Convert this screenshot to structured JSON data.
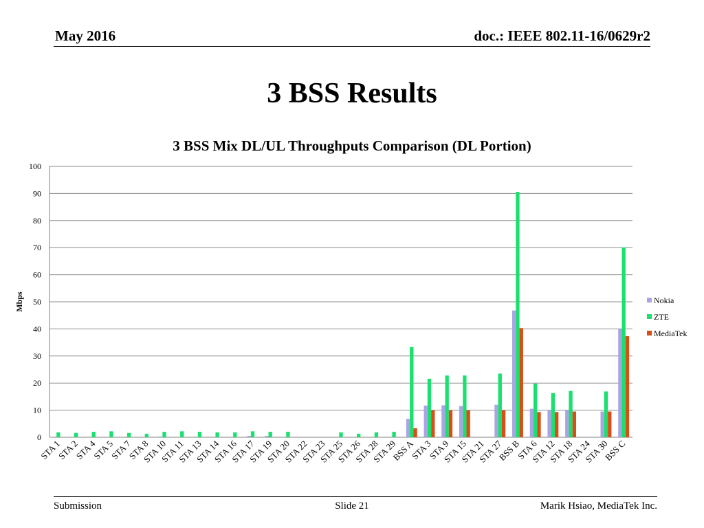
{
  "header": {
    "date": "May 2016",
    "doc": "doc.: IEEE 802.11-16/0629r2"
  },
  "slide": {
    "title": "3 BSS Results"
  },
  "footer": {
    "left": "Submission",
    "center": "Slide 21",
    "right": "Marik Hsiao, MediaTek Inc."
  },
  "chart_data": {
    "type": "bar",
    "title": "3 BSS Mix DL/UL Throughputs Comparison (DL Portion)",
    "xlabel": "",
    "ylabel": "Mbps",
    "ylim": [
      0,
      100
    ],
    "yticks": [
      0,
      10,
      20,
      30,
      40,
      50,
      60,
      70,
      80,
      90,
      100
    ],
    "grid": true,
    "legend_position": "right",
    "categories": [
      "STA 1",
      "STA 2",
      "STA 4",
      "STA 5",
      "STA 7",
      "STA 8",
      "STA 10",
      "STA 11",
      "STA 13",
      "STA 14",
      "STA 16",
      "STA 17",
      "STA 19",
      "STA 20",
      "STA 22",
      "STA 23",
      "STA 25",
      "STA 26",
      "STA 28",
      "STA 29",
      "BSS A",
      "STA 3",
      "STA 9",
      "STA 15",
      "STA 21",
      "STA 27",
      "BSS B",
      "STA 6",
      "STA 12",
      "STA 18",
      "STA 24",
      "STA 30",
      "BSS C"
    ],
    "series": [
      {
        "name": "Nokia",
        "color": "#a9a5e3",
        "values": [
          0,
          0,
          0,
          0,
          0,
          0,
          0.3,
          0,
          0,
          0,
          0,
          0.5,
          0.5,
          0,
          0,
          0,
          0,
          0,
          0,
          0,
          6.8,
          11.7,
          11.8,
          11.5,
          0,
          12,
          46.8,
          10.5,
          10,
          10,
          0,
          9.5,
          40
        ]
      },
      {
        "name": "ZTE",
        "color": "#19e06e",
        "values": [
          1.8,
          1.6,
          2,
          2.2,
          1.6,
          1.3,
          2,
          2.2,
          2,
          1.8,
          1.8,
          2.2,
          2,
          2,
          0,
          0,
          1.8,
          1.3,
          1.8,
          2,
          33.3,
          21.6,
          22.8,
          22.8,
          0,
          23.5,
          90.6,
          19.8,
          16.3,
          17.1,
          0,
          16.9,
          70
        ]
      },
      {
        "name": "MediaTek",
        "color": "#d94e17",
        "values": [
          0,
          0,
          0,
          0,
          0,
          0,
          0,
          0,
          0,
          0,
          0,
          0,
          0,
          0,
          0,
          0,
          0,
          0,
          0,
          0,
          3.3,
          10,
          10,
          10,
          0,
          10,
          40.3,
          9.3,
          9.3,
          9.5,
          0,
          9.5,
          37.3
        ]
      }
    ]
  }
}
